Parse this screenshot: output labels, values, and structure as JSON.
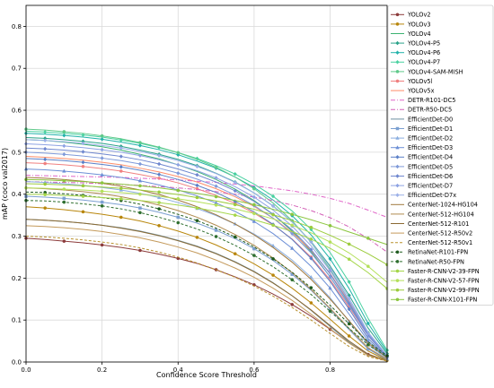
{
  "chart_data": {
    "type": "line",
    "title": "",
    "xlabel": "Confidence Score Threshold",
    "ylabel": "mAP (coco val2017)",
    "xlim": [
      0.0,
      0.95
    ],
    "ylim": [
      0.0,
      0.85
    ],
    "xticks": [
      0.0,
      0.2,
      0.4,
      0.6,
      0.8
    ],
    "xtick_labels": [
      "0.0",
      "0.2",
      "0.4",
      "0.6",
      "0.8"
    ],
    "yticks": [
      0.0,
      0.1,
      0.2,
      0.3,
      0.4,
      0.5,
      0.6,
      0.7,
      0.8
    ],
    "ytick_labels": [
      "0.0",
      "0.1",
      "0.2",
      "0.3",
      "0.4",
      "0.5",
      "0.6",
      "0.7",
      "0.8"
    ],
    "grid": true,
    "legend_position": "right",
    "x": [
      0.0,
      0.05,
      0.1,
      0.15,
      0.2,
      0.25,
      0.3,
      0.35,
      0.4,
      0.45,
      0.5,
      0.55,
      0.6,
      0.65,
      0.7,
      0.75,
      0.8,
      0.85,
      0.9,
      0.95
    ],
    "series": [
      {
        "name": "YOLOv2",
        "color": "#8c3b3b",
        "dash": "solid",
        "marker": "circle",
        "values": [
          0.295,
          0.292,
          0.288,
          0.284,
          0.279,
          0.273,
          0.266,
          0.257,
          0.247,
          0.235,
          0.22,
          0.203,
          0.184,
          0.162,
          0.137,
          0.109,
          0.078,
          0.046,
          0.018,
          0.003
        ]
      },
      {
        "name": "YOLOv3",
        "color": "#b8860b",
        "dash": "solid",
        "marker": "circle",
        "values": [
          0.37,
          0.367,
          0.363,
          0.358,
          0.352,
          0.345,
          0.336,
          0.325,
          0.312,
          0.297,
          0.279,
          0.258,
          0.234,
          0.207,
          0.176,
          0.141,
          0.102,
          0.062,
          0.026,
          0.004
        ]
      },
      {
        "name": "YOLOv4",
        "color": "#3cb371",
        "dash": "solid",
        "marker": "none",
        "values": [
          0.53,
          0.528,
          0.524,
          0.519,
          0.513,
          0.505,
          0.495,
          0.484,
          0.47,
          0.454,
          0.435,
          0.412,
          0.385,
          0.352,
          0.312,
          0.263,
          0.203,
          0.136,
          0.066,
          0.015
        ]
      },
      {
        "name": "YOLOv4-P5",
        "color": "#2aa38a",
        "dash": "solid",
        "marker": "diamond",
        "values": [
          0.535,
          0.533,
          0.53,
          0.526,
          0.521,
          0.514,
          0.505,
          0.495,
          0.483,
          0.468,
          0.45,
          0.429,
          0.403,
          0.372,
          0.334,
          0.287,
          0.229,
          0.159,
          0.081,
          0.02
        ]
      },
      {
        "name": "YOLOv4-P6",
        "color": "#20b2aa",
        "dash": "solid",
        "marker": "diamond",
        "values": [
          0.545,
          0.543,
          0.54,
          0.536,
          0.531,
          0.524,
          0.516,
          0.506,
          0.494,
          0.479,
          0.462,
          0.441,
          0.416,
          0.386,
          0.349,
          0.303,
          0.246,
          0.175,
          0.092,
          0.024
        ]
      },
      {
        "name": "YOLOv4-P7",
        "color": "#48d1a0",
        "dash": "solid",
        "marker": "diamond",
        "values": [
          0.55,
          0.548,
          0.545,
          0.541,
          0.536,
          0.529,
          0.521,
          0.511,
          0.499,
          0.485,
          0.468,
          0.448,
          0.424,
          0.395,
          0.36,
          0.316,
          0.261,
          0.191,
          0.104,
          0.028
        ]
      },
      {
        "name": "YOLOv4-SAM-MISH",
        "color": "#5fc98a",
        "dash": "solid",
        "marker": "circle",
        "values": [
          0.555,
          0.553,
          0.549,
          0.545,
          0.539,
          0.532,
          0.523,
          0.512,
          0.499,
          0.483,
          0.464,
          0.441,
          0.413,
          0.379,
          0.337,
          0.285,
          0.221,
          0.146,
          0.07,
          0.016
        ]
      },
      {
        "name": "YOLOv5l",
        "color": "#f08080",
        "dash": "solid",
        "marker": "circle",
        "values": [
          0.475,
          0.473,
          0.47,
          0.466,
          0.461,
          0.455,
          0.447,
          0.438,
          0.427,
          0.413,
          0.397,
          0.378,
          0.355,
          0.327,
          0.293,
          0.25,
          0.196,
          0.131,
          0.062,
          0.013
        ]
      },
      {
        "name": "YOLOv5x",
        "color": "#ff8c69",
        "dash": "solid",
        "marker": "none",
        "values": [
          0.49,
          0.488,
          0.485,
          0.481,
          0.476,
          0.47,
          0.462,
          0.453,
          0.442,
          0.429,
          0.413,
          0.394,
          0.371,
          0.343,
          0.309,
          0.266,
          0.211,
          0.143,
          0.069,
          0.015
        ]
      },
      {
        "name": "DETR-R101-DC5",
        "color": "#e066c8",
        "dash": "dashdot",
        "marker": "none",
        "values": [
          0.445,
          0.444,
          0.443,
          0.442,
          0.441,
          0.44,
          0.438,
          0.436,
          0.434,
          0.431,
          0.428,
          0.424,
          0.42,
          0.414,
          0.408,
          0.4,
          0.39,
          0.378,
          0.362,
          0.345
        ]
      },
      {
        "name": "DETR-R50-DC5",
        "color": "#d35fb7",
        "dash": "dashdot",
        "marker": "none",
        "values": [
          0.43,
          0.429,
          0.428,
          0.427,
          0.425,
          0.423,
          0.421,
          0.418,
          0.415,
          0.411,
          0.406,
          0.4,
          0.393,
          0.385,
          0.374,
          0.361,
          0.344,
          0.322,
          0.294,
          0.262
        ]
      },
      {
        "name": "EfficientDet-D0",
        "color": "#6b8e9f",
        "dash": "solid",
        "marker": "none",
        "values": [
          0.34,
          0.338,
          0.335,
          0.331,
          0.326,
          0.32,
          0.312,
          0.302,
          0.29,
          0.276,
          0.259,
          0.239,
          0.216,
          0.189,
          0.158,
          0.123,
          0.085,
          0.047,
          0.016,
          0.002
        ]
      },
      {
        "name": "EfficientDet-D1",
        "color": "#7b9fd1",
        "dash": "solid",
        "marker": "square",
        "values": [
          0.395,
          0.393,
          0.39,
          0.386,
          0.381,
          0.375,
          0.367,
          0.357,
          0.345,
          0.331,
          0.314,
          0.294,
          0.27,
          0.242,
          0.209,
          0.171,
          0.126,
          0.077,
          0.031,
          0.005
        ]
      },
      {
        "name": "EfficientDet-D2",
        "color": "#8aaee0",
        "dash": "solid",
        "marker": "triangle",
        "values": [
          0.43,
          0.428,
          0.425,
          0.421,
          0.416,
          0.41,
          0.402,
          0.392,
          0.38,
          0.366,
          0.349,
          0.329,
          0.305,
          0.277,
          0.243,
          0.202,
          0.153,
          0.097,
          0.041,
          0.007
        ]
      },
      {
        "name": "EfficientDet-D3",
        "color": "#6c8fd6",
        "dash": "solid",
        "marker": "triangle",
        "values": [
          0.46,
          0.458,
          0.455,
          0.451,
          0.446,
          0.44,
          0.432,
          0.422,
          0.41,
          0.396,
          0.379,
          0.359,
          0.335,
          0.306,
          0.271,
          0.228,
          0.176,
          0.114,
          0.05,
          0.009
        ]
      },
      {
        "name": "EfficientDet-D4",
        "color": "#5a7fc7",
        "dash": "solid",
        "marker": "diamond",
        "values": [
          0.485,
          0.483,
          0.48,
          0.476,
          0.471,
          0.465,
          0.457,
          0.447,
          0.435,
          0.421,
          0.404,
          0.383,
          0.358,
          0.328,
          0.292,
          0.247,
          0.192,
          0.126,
          0.056,
          0.011
        ]
      },
      {
        "name": "EfficientDet-D5",
        "color": "#7f9ad9",
        "dash": "solid",
        "marker": "diamond",
        "values": [
          0.5,
          0.498,
          0.495,
          0.491,
          0.486,
          0.48,
          0.472,
          0.462,
          0.45,
          0.436,
          0.419,
          0.398,
          0.373,
          0.343,
          0.306,
          0.26,
          0.203,
          0.135,
          0.062,
          0.013
        ]
      },
      {
        "name": "EfficientDet-D6",
        "color": "#6f87cf",
        "dash": "solid",
        "marker": "diamond",
        "values": [
          0.51,
          0.508,
          0.505,
          0.501,
          0.496,
          0.49,
          0.482,
          0.472,
          0.46,
          0.446,
          0.429,
          0.408,
          0.383,
          0.352,
          0.315,
          0.268,
          0.21,
          0.14,
          0.065,
          0.014
        ]
      },
      {
        "name": "EfficientDet-D7",
        "color": "#8da2e3",
        "dash": "solid",
        "marker": "diamond",
        "values": [
          0.52,
          0.518,
          0.515,
          0.511,
          0.506,
          0.5,
          0.492,
          0.482,
          0.47,
          0.456,
          0.439,
          0.418,
          0.393,
          0.362,
          0.324,
          0.277,
          0.218,
          0.146,
          0.068,
          0.015
        ]
      },
      {
        "name": "EfficientDet-D7x",
        "color": "#9bb0e8",
        "dash": "solid",
        "marker": "diamond",
        "values": [
          0.53,
          0.528,
          0.525,
          0.521,
          0.516,
          0.51,
          0.502,
          0.492,
          0.48,
          0.466,
          0.449,
          0.428,
          0.403,
          0.372,
          0.334,
          0.286,
          0.226,
          0.152,
          0.071,
          0.016
        ]
      },
      {
        "name": "CenterNet-1024-HG104",
        "color": "#a0783c",
        "dash": "solid",
        "marker": "none",
        "values": [
          0.44,
          0.438,
          0.435,
          0.431,
          0.426,
          0.419,
          0.41,
          0.399,
          0.386,
          0.37,
          0.351,
          0.329,
          0.303,
          0.273,
          0.238,
          0.197,
          0.15,
          0.098,
          0.045,
          0.01
        ]
      },
      {
        "name": "CenterNet-512-HG104",
        "color": "#b08b4f",
        "dash": "solid",
        "marker": "none",
        "values": [
          0.415,
          0.413,
          0.41,
          0.406,
          0.401,
          0.394,
          0.385,
          0.374,
          0.361,
          0.345,
          0.326,
          0.304,
          0.278,
          0.248,
          0.213,
          0.173,
          0.128,
          0.08,
          0.034,
          0.006
        ]
      },
      {
        "name": "CenterNet-512-R101",
        "color": "#8b6a32",
        "dash": "solid",
        "marker": "none",
        "values": [
          0.34,
          0.338,
          0.335,
          0.331,
          0.326,
          0.319,
          0.311,
          0.301,
          0.289,
          0.275,
          0.258,
          0.238,
          0.215,
          0.188,
          0.158,
          0.124,
          0.087,
          0.05,
          0.019,
          0.003
        ]
      },
      {
        "name": "CenterNet-512-R50v2",
        "color": "#c49a5b",
        "dash": "solid",
        "marker": "none",
        "values": [
          0.325,
          0.323,
          0.32,
          0.316,
          0.311,
          0.304,
          0.296,
          0.286,
          0.274,
          0.26,
          0.243,
          0.224,
          0.202,
          0.176,
          0.147,
          0.114,
          0.079,
          0.045,
          0.016,
          0.002
        ]
      },
      {
        "name": "CenterNet-512-R50v1",
        "color": "#b8912d",
        "dash": "dashed",
        "marker": "none",
        "values": [
          0.3,
          0.298,
          0.295,
          0.291,
          0.286,
          0.28,
          0.272,
          0.262,
          0.25,
          0.236,
          0.22,
          0.202,
          0.181,
          0.157,
          0.13,
          0.1,
          0.068,
          0.037,
          0.013,
          0.002
        ]
      },
      {
        "name": "RetinaNet-R101-FPN",
        "color": "#1f5c1f",
        "dash": "dashed",
        "marker": "circle",
        "values": [
          0.405,
          0.404,
          0.401,
          0.397,
          0.392,
          0.385,
          0.376,
          0.365,
          0.352,
          0.337,
          0.319,
          0.298,
          0.274,
          0.246,
          0.214,
          0.177,
          0.135,
          0.091,
          0.048,
          0.015
        ]
      },
      {
        "name": "RetinaNet-R50-FPN",
        "color": "#2f6f2f",
        "dash": "dashed",
        "marker": "circle",
        "values": [
          0.385,
          0.384,
          0.381,
          0.377,
          0.372,
          0.365,
          0.356,
          0.345,
          0.332,
          0.317,
          0.299,
          0.278,
          0.254,
          0.227,
          0.196,
          0.161,
          0.121,
          0.08,
          0.041,
          0.012
        ]
      },
      {
        "name": "Faster-R-CNN-V2-39-FPN",
        "color": "#a5d64a",
        "dash": "solid",
        "marker": "circle",
        "values": [
          0.4,
          0.399,
          0.397,
          0.395,
          0.392,
          0.389,
          0.385,
          0.38,
          0.374,
          0.367,
          0.359,
          0.35,
          0.339,
          0.326,
          0.311,
          0.293,
          0.271,
          0.245,
          0.213,
          0.175
        ]
      },
      {
        "name": "Faster-R-CNN-V2-57-FPN",
        "color": "#b4e05a",
        "dash": "solid",
        "marker": "circle",
        "values": [
          0.415,
          0.414,
          0.412,
          0.41,
          0.407,
          0.404,
          0.4,
          0.395,
          0.389,
          0.382,
          0.374,
          0.365,
          0.354,
          0.341,
          0.326,
          0.308,
          0.286,
          0.26,
          0.228,
          0.19
        ]
      },
      {
        "name": "Faster-R-CNN-V2-99-FPN",
        "color": "#9ccc3c",
        "dash": "solid",
        "marker": "circle",
        "values": [
          0.425,
          0.424,
          0.422,
          0.42,
          0.417,
          0.414,
          0.41,
          0.405,
          0.399,
          0.392,
          0.384,
          0.375,
          0.364,
          0.351,
          0.337,
          0.321,
          0.302,
          0.281,
          0.258,
          0.232
        ]
      },
      {
        "name": "Faster-R-CNN-X101-FPN",
        "color": "#8cc63f",
        "dash": "solid",
        "marker": "circle",
        "values": [
          0.435,
          0.434,
          0.432,
          0.43,
          0.427,
          0.424,
          0.42,
          0.415,
          0.409,
          0.402,
          0.394,
          0.385,
          0.375,
          0.364,
          0.352,
          0.339,
          0.325,
          0.31,
          0.295,
          0.28
        ]
      }
    ]
  }
}
